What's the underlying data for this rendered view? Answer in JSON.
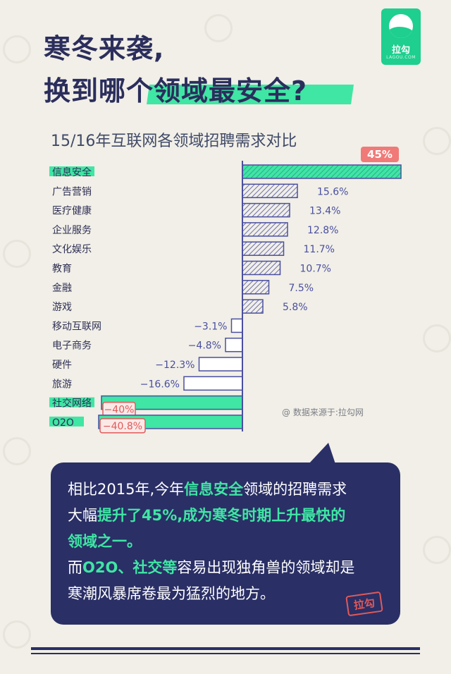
{
  "headline": {
    "line1": "寒冬来袭,",
    "line2": "换到哪个领域最安全?"
  },
  "logo": {
    "text": "拉勾",
    "sub": "LAGOU.COM"
  },
  "chart_data": {
    "type": "bar",
    "orientation": "horizontal",
    "title": "15/16年互联网各领域招聘需求对比",
    "categories": [
      "信息安全",
      "广告营销",
      "医疗健康",
      "企业服务",
      "文化娱乐",
      "教育",
      "金融",
      "游戏",
      "移动互联网",
      "电子商务",
      "硬件",
      "旅游",
      "社交网络",
      "O2O"
    ],
    "values": [
      45,
      15.6,
      13.4,
      12.8,
      11.7,
      10.7,
      7.5,
      5.8,
      -3.1,
      -4.8,
      -12.3,
      -16.6,
      -40,
      -40.8
    ],
    "value_labels": [
      "45%",
      "15.6%",
      "13.4%",
      "12.8%",
      "11.7%",
      "10.7%",
      "7.5%",
      "5.8%",
      "−3.1%",
      "−4.8%",
      "−12.3%",
      "−16.6%",
      "−40%",
      "−40.8%"
    ],
    "highlighted": [
      "信息安全",
      "社交网络",
      "O2O"
    ],
    "colors": {
      "highlight": "#3fe6a4",
      "bar_fill": "#d9daf0",
      "bar_stroke": "#4a4fa0",
      "label": "#4a4fa0",
      "callout": "#e05a5a"
    }
  },
  "source": "@ 数据来源于:拉勾网",
  "bubble": {
    "line1_a": "相比2015年,今年",
    "line1_b": "信息安全",
    "line1_c": "领域的招聘需求",
    "line2_a": "大幅",
    "line2_b": "提升了45%,成为寒冬时期上升最快的",
    "line3_b": "领域之一。",
    "line4_a": "而",
    "line4_b": "O2O、社交等",
    "line4_c": "容易出现独角兽的领域却是",
    "line5": "寒潮风暴席卷最为猛烈的地方。",
    "stamp": "拉勾"
  }
}
